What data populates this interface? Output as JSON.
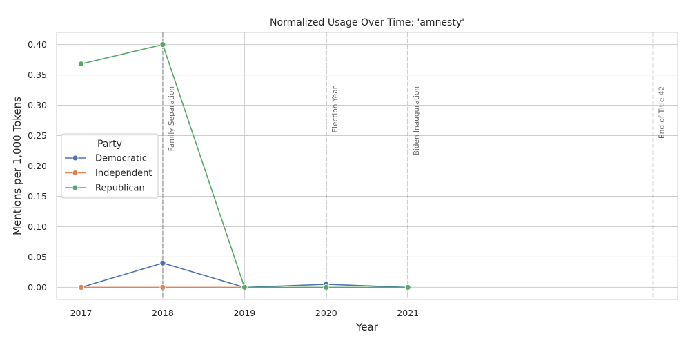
{
  "chart_data": {
    "type": "line",
    "title": "Normalized Usage Over Time: 'amnesty'",
    "xlabel": "Year",
    "ylabel": "Mentions per 1,000 Tokens",
    "x_ticks": [
      2017,
      2018,
      2019,
      2020,
      2021
    ],
    "y_ticks": [
      "0.00",
      "0.05",
      "0.10",
      "0.15",
      "0.20",
      "0.25",
      "0.30",
      "0.35",
      "0.40"
    ],
    "xlim": [
      2016.7,
      2024.3
    ],
    "ylim": [
      -0.02,
      0.42
    ],
    "grid": true,
    "legend": {
      "title": "Party",
      "placement": "center-left"
    },
    "series": [
      {
        "name": "Democratic",
        "color": "#4c72b0",
        "x": [
          2017,
          2018,
          2019,
          2020,
          2021
        ],
        "y": [
          0.0,
          0.04,
          0.0,
          0.005,
          0.0
        ]
      },
      {
        "name": "Independent",
        "color": "#dd8452",
        "x": [
          2017,
          2018,
          2019
        ],
        "y": [
          0.0,
          0.0,
          0.0
        ]
      },
      {
        "name": "Republican",
        "color": "#55a868",
        "x": [
          2017,
          2018,
          2019,
          2020,
          2021
        ],
        "y": [
          0.368,
          0.4,
          0.0,
          0.0,
          0.0
        ]
      }
    ],
    "events": [
      {
        "x": 2018,
        "label": "Family Separation"
      },
      {
        "x": 2020,
        "label": "Election Year"
      },
      {
        "x": 2021,
        "label": "Biden Inauguration"
      },
      {
        "x": 2024,
        "label": "End of Title 42"
      }
    ]
  }
}
